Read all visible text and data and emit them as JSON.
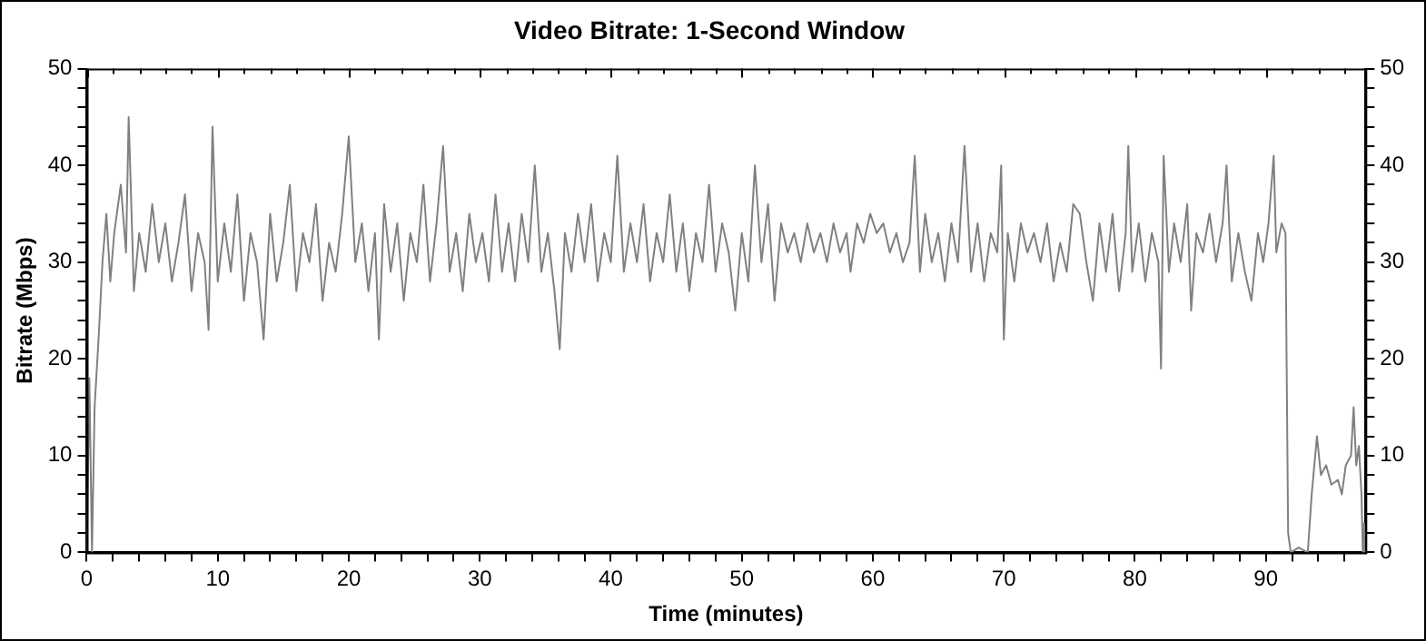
{
  "chart_data": {
    "type": "line",
    "title": "Video Bitrate: 1-Second Window",
    "xlabel": "Time (minutes)",
    "ylabel": "Bitrate (Mbps)",
    "xlim": [
      0,
      97.6
    ],
    "ylim": [
      0,
      50
    ],
    "y2lim": [
      0,
      50
    ],
    "xticks": [
      0,
      {
        "value": 2,
        "label": null
      },
      {
        "value": 4,
        "label": null
      },
      {
        "value": 6,
        "label": null
      },
      {
        "value": 8,
        "label": null
      },
      10,
      {
        "value": 12,
        "label": null
      },
      {
        "value": 14,
        "label": null
      },
      {
        "value": 16,
        "label": null
      },
      {
        "value": 18,
        "label": null
      },
      20,
      {
        "value": 22,
        "label": null
      },
      {
        "value": 24,
        "label": null
      },
      {
        "value": 26,
        "label": null
      },
      {
        "value": 28,
        "label": null
      },
      30,
      {
        "value": 32,
        "label": null
      },
      {
        "value": 34,
        "label": null
      },
      {
        "value": 36,
        "label": null
      },
      {
        "value": 38,
        "label": null
      },
      40,
      {
        "value": 42,
        "label": null
      },
      {
        "value": 44,
        "label": null
      },
      {
        "value": 46,
        "label": null
      },
      {
        "value": 48,
        "label": null
      },
      50,
      {
        "value": 52,
        "label": null
      },
      {
        "value": 54,
        "label": null
      },
      {
        "value": 56,
        "label": null
      },
      {
        "value": 58,
        "label": null
      },
      60,
      {
        "value": 62,
        "label": null
      },
      {
        "value": 64,
        "label": null
      },
      {
        "value": 66,
        "label": null
      },
      {
        "value": 68,
        "label": null
      },
      70,
      {
        "value": 72,
        "label": null
      },
      {
        "value": 74,
        "label": null
      },
      {
        "value": 76,
        "label": null
      },
      {
        "value": 78,
        "label": null
      },
      80,
      {
        "value": 82,
        "label": null
      },
      {
        "value": 84,
        "label": null
      },
      {
        "value": 86,
        "label": null
      },
      {
        "value": 88,
        "label": null
      },
      90,
      {
        "value": 92,
        "label": null
      },
      {
        "value": 94,
        "label": null
      },
      {
        "value": 96,
        "label": null
      }
    ],
    "yticks": [
      0,
      {
        "value": 2,
        "label": null
      },
      {
        "value": 4,
        "label": null
      },
      {
        "value": 6,
        "label": null
      },
      {
        "value": 8,
        "label": null
      },
      10,
      {
        "value": 12,
        "label": null
      },
      {
        "value": 14,
        "label": null
      },
      {
        "value": 16,
        "label": null
      },
      {
        "value": 18,
        "label": null
      },
      20,
      {
        "value": 22,
        "label": null
      },
      {
        "value": 24,
        "label": null
      },
      {
        "value": 26,
        "label": null
      },
      {
        "value": 28,
        "label": null
      },
      30,
      {
        "value": 32,
        "label": null
      },
      {
        "value": 34,
        "label": null
      },
      {
        "value": 36,
        "label": null
      },
      {
        "value": 38,
        "label": null
      },
      40,
      {
        "value": 42,
        "label": null
      },
      {
        "value": 44,
        "label": null
      },
      {
        "value": 46,
        "label": null
      },
      {
        "value": 48,
        "label": null
      },
      50
    ],
    "y2ticks": [
      0,
      {
        "value": 2,
        "label": null
      },
      {
        "value": 4,
        "label": null
      },
      {
        "value": 6,
        "label": null
      },
      {
        "value": 8,
        "label": null
      },
      10,
      {
        "value": 12,
        "label": null
      },
      {
        "value": 14,
        "label": null
      },
      {
        "value": 16,
        "label": null
      },
      {
        "value": 18,
        "label": null
      },
      20,
      {
        "value": 22,
        "label": null
      },
      {
        "value": 24,
        "label": null
      },
      {
        "value": 26,
        "label": null
      },
      {
        "value": 28,
        "label": null
      },
      30,
      {
        "value": 32,
        "label": null
      },
      {
        "value": 34,
        "label": null
      },
      {
        "value": 36,
        "label": null
      },
      {
        "value": 38,
        "label": null
      },
      40,
      {
        "value": 42,
        "label": null
      },
      {
        "value": 44,
        "label": null
      },
      {
        "value": 46,
        "label": null
      },
      {
        "value": 48,
        "label": null
      },
      50
    ],
    "grid": false,
    "legend": false,
    "marker": "none",
    "line_style": "solid",
    "series": [
      {
        "color": "#808080",
        "x": [
          0,
          0.2,
          0.4,
          0.6,
          0.9,
          1.2,
          1.5,
          1.8,
          2.1,
          2.6,
          3.0,
          3.2,
          3.6,
          4.0,
          4.5,
          5.0,
          5.5,
          6.0,
          6.5,
          7.0,
          7.5,
          8.0,
          8.5,
          9.0,
          9.3,
          9.6,
          10.0,
          10.5,
          11,
          11.5,
          12,
          12.5,
          13,
          13.5,
          14,
          14.5,
          15,
          15.5,
          16,
          16.5,
          17,
          17.5,
          18,
          18.5,
          19,
          19.5,
          20,
          20.5,
          21,
          21.5,
          22,
          22.3,
          22.7,
          23.2,
          23.7,
          24.2,
          24.7,
          25.2,
          25.7,
          26.2,
          26.7,
          27.2,
          27.7,
          28.2,
          28.7,
          29.2,
          29.7,
          30.2,
          30.7,
          31.2,
          31.7,
          32.2,
          32.7,
          33.2,
          33.7,
          34.2,
          34.7,
          35.2,
          35.7,
          36.1,
          36.5,
          37,
          37.5,
          38,
          38.5,
          39,
          39.5,
          40,
          40.5,
          41,
          41.5,
          42,
          42.5,
          43,
          43.5,
          44,
          44.5,
          45,
          45.5,
          46,
          46.5,
          47,
          47.5,
          48,
          48.5,
          49,
          49.5,
          50,
          50.5,
          51,
          51.5,
          52,
          52.5,
          53,
          53.5,
          54,
          54.5,
          55,
          55.5,
          56,
          56.5,
          57,
          57.5,
          58,
          58.3,
          58.8,
          59.3,
          59.8,
          60.3,
          60.8,
          61.3,
          61.8,
          62.3,
          62.8,
          63.2,
          63.6,
          64,
          64.5,
          65,
          65.5,
          66,
          66.5,
          67,
          67.5,
          68,
          68.5,
          69,
          69.5,
          69.8,
          70,
          70.3,
          70.8,
          71.3,
          71.8,
          72.3,
          72.8,
          73.3,
          73.8,
          74.3,
          74.8,
          75.3,
          75.8,
          76.3,
          76.8,
          77.3,
          77.8,
          78.3,
          78.8,
          79.3,
          79.5,
          79.8,
          80.3,
          80.8,
          81.3,
          81.8,
          82,
          82.2,
          82.6,
          83,
          83.5,
          84,
          84.3,
          84.7,
          85.2,
          85.7,
          86.2,
          86.7,
          87,
          87.4,
          87.9,
          88.4,
          88.9,
          89.4,
          89.8,
          90.2,
          90.6,
          90.8,
          91.2,
          91.5,
          91.7,
          91.9,
          92.5,
          93.2,
          93.5,
          93.9,
          94.2,
          94.6,
          95,
          95.5,
          95.8,
          96.1,
          96.5,
          96.7,
          96.9,
          97.1,
          97.3,
          97.4,
          97.5,
          97.6
        ],
        "values": [
          0,
          18,
          0,
          15,
          22,
          30,
          35,
          28,
          33,
          38,
          31,
          45,
          27,
          33,
          29,
          36,
          30,
          34,
          28,
          32,
          37,
          27,
          33,
          30,
          23,
          44,
          28,
          34,
          29,
          37,
          26,
          33,
          30,
          22,
          35,
          28,
          32,
          38,
          27,
          33,
          30,
          36,
          26,
          32,
          29,
          35,
          43,
          30,
          34,
          27,
          33,
          22,
          36,
          29,
          34,
          26,
          33,
          30,
          38,
          28,
          34,
          42,
          29,
          33,
          27,
          35,
          30,
          33,
          28,
          37,
          29,
          34,
          28,
          35,
          30,
          40,
          29,
          33,
          27,
          21,
          33,
          29,
          35,
          30,
          36,
          28,
          33,
          30,
          41,
          29,
          34,
          30,
          36,
          28,
          33,
          30,
          37,
          29,
          34,
          27,
          33,
          30,
          38,
          29,
          34,
          31,
          25,
          33,
          28,
          40,
          30,
          36,
          26,
          34,
          31,
          33,
          30,
          34,
          31,
          33,
          30,
          34,
          31,
          33,
          29,
          34,
          32,
          35,
          33,
          34,
          31,
          33,
          30,
          32,
          41,
          29,
          35,
          30,
          33,
          28,
          34,
          30,
          42,
          29,
          34,
          28,
          33,
          31,
          40,
          22,
          33,
          28,
          34,
          31,
          33,
          30,
          34,
          28,
          32,
          29,
          36,
          35,
          30,
          26,
          34,
          29,
          35,
          27,
          33,
          42,
          29,
          34,
          28,
          33,
          30,
          19,
          41,
          29,
          34,
          30,
          36,
          25,
          33,
          31,
          35,
          30,
          34,
          40,
          28,
          33,
          29,
          26,
          33,
          30,
          34,
          41,
          31,
          34,
          33,
          2,
          0,
          0.5,
          0,
          6,
          12,
          8,
          9,
          7,
          7.5,
          6,
          9,
          10,
          15,
          9,
          11,
          6,
          0,
          3,
          0
        ]
      }
    ]
  }
}
